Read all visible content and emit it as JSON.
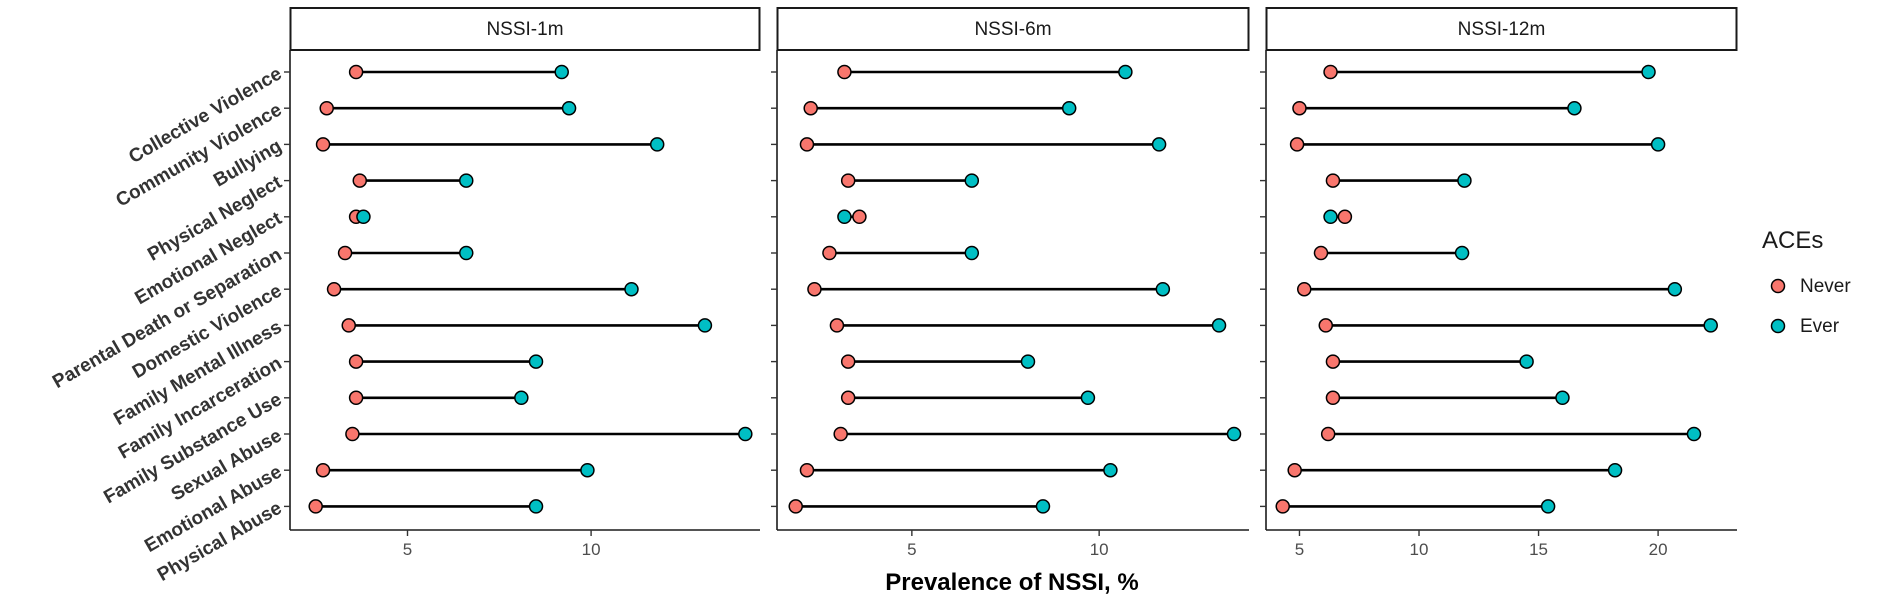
{
  "chart_data": {
    "type": "dumbbell",
    "xlabel": "Prevalence of NSSI, %",
    "categories": [
      "Physical Abuse",
      "Emotional Abuse",
      "Sexual Abuse",
      "Family Substance Use",
      "Family Incarceration",
      "Family Mental Illness",
      "Domestic Violence",
      "Parental Death or Separation",
      "Emotional Neglect",
      "Physical Neglect",
      "Bullying",
      "Community Violence",
      "Collective Violence"
    ],
    "legend": {
      "title": "ACEs",
      "position": "right",
      "entries": [
        {
          "label": "Never",
          "color": "#F8766D"
        },
        {
          "label": "Ever",
          "color": "#00BFC4"
        }
      ]
    },
    "panels": [
      {
        "title": "NSSI-1m",
        "xlim": [
          1.8,
          14.6
        ],
        "ticks": [
          5,
          10
        ],
        "never": [
          2.5,
          2.7,
          3.5,
          3.6,
          3.6,
          3.4,
          3.0,
          3.3,
          3.6,
          3.7,
          2.7,
          2.8,
          3.6
        ],
        "ever": [
          8.5,
          9.9,
          14.2,
          8.1,
          8.5,
          13.1,
          11.1,
          6.6,
          3.8,
          6.6,
          11.8,
          9.4,
          9.2
        ]
      },
      {
        "title": "NSSI-6m",
        "xlim": [
          1.4,
          14.0
        ],
        "ticks": [
          5,
          10
        ],
        "never": [
          1.9,
          2.2,
          3.1,
          3.3,
          3.3,
          3.0,
          2.4,
          2.8,
          3.6,
          3.3,
          2.2,
          2.3,
          3.2
        ],
        "ever": [
          8.5,
          10.3,
          13.6,
          9.7,
          8.1,
          13.2,
          11.7,
          6.6,
          3.2,
          6.6,
          11.6,
          9.2,
          10.7
        ]
      },
      {
        "title": "NSSI-12m",
        "xlim": [
          3.6,
          23.3
        ],
        "ticks": [
          5,
          10,
          15,
          20
        ],
        "never": [
          4.3,
          4.8,
          6.2,
          6.4,
          6.4,
          6.1,
          5.2,
          5.9,
          6.9,
          6.4,
          4.9,
          5.0,
          6.3
        ],
        "ever": [
          15.4,
          18.2,
          21.5,
          16.0,
          14.5,
          22.2,
          20.7,
          11.8,
          6.3,
          11.9,
          20.0,
          16.5,
          19.6
        ]
      }
    ]
  }
}
